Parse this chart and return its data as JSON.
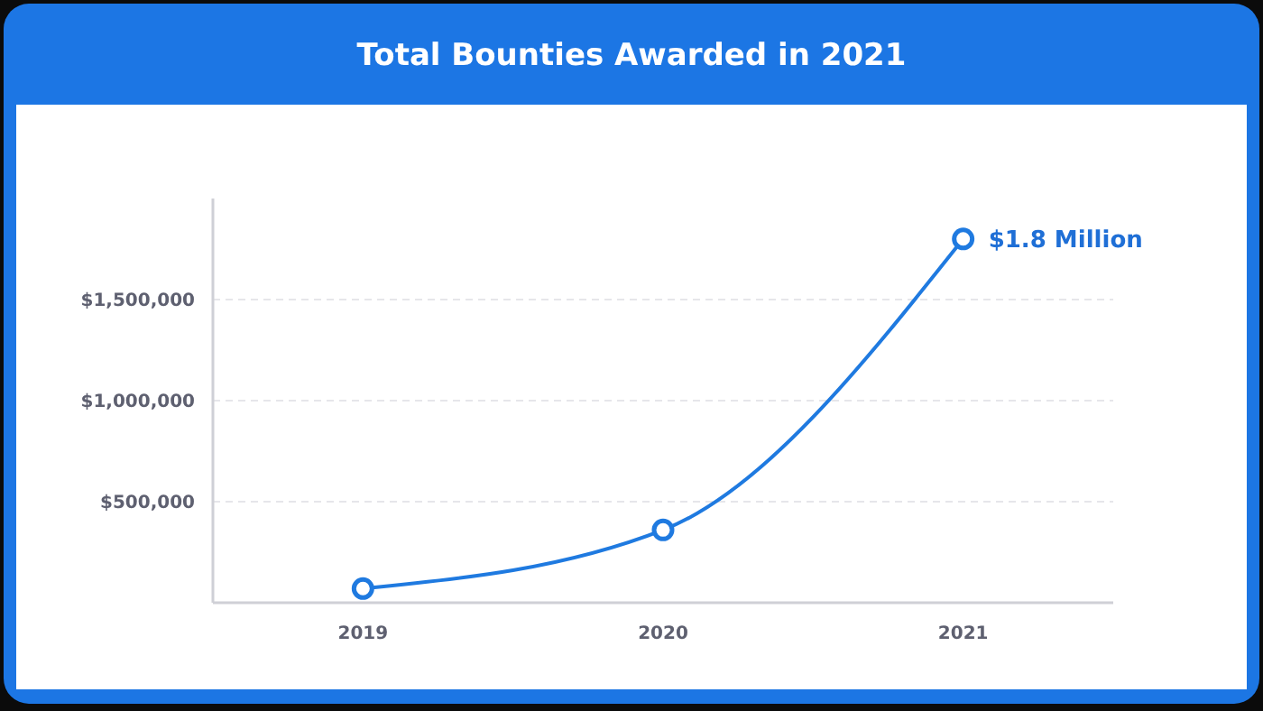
{
  "chart_data": {
    "type": "line",
    "title": "Total Bounties Awarded in 2021",
    "categories": [
      "2019",
      "2020",
      "2021"
    ],
    "series": [
      {
        "color": "#1f7ae0",
        "values": [
          70000,
          360000,
          1800000
        ]
      }
    ],
    "ylim": [
      0,
      2000000
    ],
    "yticks": [
      {
        "value": 500000,
        "label": "$500,000"
      },
      {
        "value": 1000000,
        "label": "$1,000,000"
      },
      {
        "value": 1500000,
        "label": "$1,500,000"
      }
    ],
    "grid": "y",
    "marker": "circle",
    "line_style": "solid",
    "annotations": [
      {
        "text": "$1.8 Million",
        "x": "2021",
        "y": 1800000
      }
    ]
  }
}
